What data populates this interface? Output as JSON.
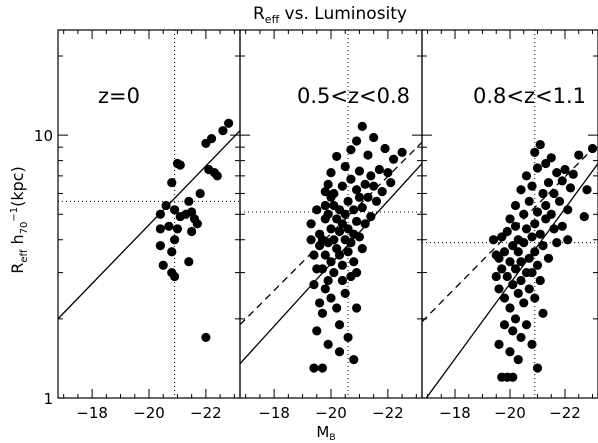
{
  "figure": {
    "title": "R",
    "title_sub": "eff",
    "title_rest": " vs. Luminosity",
    "ylabel_parts": [
      "R",
      "eff",
      " h",
      "70",
      "−1",
      "(kpc)"
    ],
    "xlabel_main": "M",
    "xlabel_sub": "B"
  },
  "chart_data": [
    {
      "type": "scatter",
      "panel_label": "z=0",
      "xlim": [
        -16.8,
        -23.2
      ],
      "ylim_log10": [
        0,
        1.4
      ],
      "x_ticks": [
        -18,
        -20,
        -22
      ],
      "x_tick_labels": [
        "−18",
        "−20",
        "−22"
      ],
      "y_ticks": [
        1,
        10
      ],
      "y_tick_labels": [
        "1",
        "10"
      ],
      "ref_x": -20.9,
      "ref_y": 5.6,
      "lines": [
        {
          "style": "solid",
          "x": [
            -16.8,
            -23.2
          ],
          "y": [
            2.0,
            10.4
          ]
        }
      ],
      "points": [
        [
          -20.4,
          3.8
        ],
        [
          -20.4,
          4.4
        ],
        [
          -20.4,
          5.0
        ],
        [
          -20.5,
          3.2
        ],
        [
          -20.6,
          5.4
        ],
        [
          -20.7,
          4.5
        ],
        [
          -20.8,
          3.0
        ],
        [
          -20.8,
          3.6
        ],
        [
          -20.8,
          6.6
        ],
        [
          -20.9,
          2.9
        ],
        [
          -20.9,
          4.0
        ],
        [
          -20.9,
          5.2
        ],
        [
          -21.0,
          7.8
        ],
        [
          -21.0,
          4.4
        ],
        [
          -21.1,
          4.9
        ],
        [
          -21.1,
          7.7
        ],
        [
          -21.3,
          5.0
        ],
        [
          -21.4,
          5.6
        ],
        [
          -21.4,
          3.3
        ],
        [
          -21.5,
          4.3
        ],
        [
          -21.5,
          5.1
        ],
        [
          -21.6,
          4.8
        ],
        [
          -21.7,
          4.6
        ],
        [
          -21.8,
          6.0
        ],
        [
          -22.0,
          9.3
        ],
        [
          -22.1,
          7.4
        ],
        [
          -22.2,
          9.7
        ],
        [
          -22.3,
          7.2
        ],
        [
          -22.4,
          7.0
        ],
        [
          -22.6,
          10.4
        ],
        [
          -22.8,
          11.1
        ],
        [
          -22.0,
          1.7
        ]
      ]
    },
    {
      "type": "scatter",
      "panel_label": "0.5<z<0.8",
      "xlim": [
        -16.8,
        -23.2
      ],
      "ylim_log10": [
        0,
        1.4
      ],
      "x_ticks": [
        -18,
        -20,
        -22
      ],
      "x_tick_labels": [
        "−18",
        "−20",
        "−22"
      ],
      "y_ticks": [
        1,
        10
      ],
      "ref_x": -20.6,
      "ref_y": 5.1,
      "lines": [
        {
          "style": "dashed",
          "x": [
            -16.8,
            -23.2
          ],
          "y": [
            1.9,
            9.4
          ]
        },
        {
          "style": "solid",
          "x": [
            -16.8,
            -23.2
          ],
          "y": [
            1.35,
            7.8
          ]
        }
      ],
      "points": [
        [
          -19.3,
          4.0
        ],
        [
          -19.3,
          4.6
        ],
        [
          -19.4,
          3.5
        ],
        [
          -19.4,
          2.7
        ],
        [
          -19.4,
          1.3
        ],
        [
          -19.5,
          3.1
        ],
        [
          -19.5,
          5.2
        ],
        [
          -19.6,
          4.2
        ],
        [
          -19.6,
          2.3
        ],
        [
          -19.6,
          3.8
        ],
        [
          -19.7,
          1.3
        ],
        [
          -19.7,
          4.0
        ],
        [
          -19.7,
          3.1
        ],
        [
          -19.7,
          2.1
        ],
        [
          -19.8,
          5.4
        ],
        [
          -19.8,
          4.8
        ],
        [
          -19.8,
          3.5
        ],
        [
          -19.8,
          6.1
        ],
        [
          -19.8,
          2.6
        ],
        [
          -19.9,
          5.0
        ],
        [
          -19.9,
          3.9
        ],
        [
          -19.9,
          2.8
        ],
        [
          -19.9,
          1.6
        ],
        [
          -19.9,
          6.5
        ],
        [
          -20.0,
          4.4
        ],
        [
          -20.0,
          3.3
        ],
        [
          -20.0,
          7.2
        ],
        [
          -20.0,
          5.8
        ],
        [
          -20.0,
          2.4
        ],
        [
          -20.1,
          4.0
        ],
        [
          -20.1,
          3.0
        ],
        [
          -20.1,
          5.4
        ],
        [
          -20.1,
          6.0
        ],
        [
          -20.2,
          4.8
        ],
        [
          -20.2,
          3.7
        ],
        [
          -20.2,
          2.2
        ],
        [
          -20.2,
          8.3
        ],
        [
          -20.3,
          4.3
        ],
        [
          -20.3,
          5.2
        ],
        [
          -20.3,
          3.5
        ],
        [
          -20.3,
          1.9
        ],
        [
          -20.4,
          6.4
        ],
        [
          -20.4,
          4.6
        ],
        [
          -20.4,
          2.8
        ],
        [
          -20.4,
          3.2
        ],
        [
          -20.5,
          5.0
        ],
        [
          -20.5,
          4.0
        ],
        [
          -20.5,
          7.6
        ],
        [
          -20.5,
          2.5
        ],
        [
          -20.6,
          3.6
        ],
        [
          -20.6,
          5.6
        ],
        [
          -20.6,
          4.4
        ],
        [
          -20.6,
          1.7
        ],
        [
          -20.7,
          6.8
        ],
        [
          -20.7,
          3.9
        ],
        [
          -20.7,
          2.9
        ],
        [
          -20.7,
          8.8
        ],
        [
          -20.8,
          5.2
        ],
        [
          -20.8,
          4.2
        ],
        [
          -20.8,
          1.4
        ],
        [
          -20.8,
          3.3
        ],
        [
          -20.9,
          6.2
        ],
        [
          -20.9,
          4.7
        ],
        [
          -20.9,
          3.0
        ],
        [
          -20.9,
          9.5
        ],
        [
          -21.0,
          5.8
        ],
        [
          -21.0,
          4.1
        ],
        [
          -21.0,
          7.3
        ],
        [
          -21.1,
          10.8
        ],
        [
          -21.1,
          5.3
        ],
        [
          -21.1,
          3.7
        ],
        [
          -21.2,
          6.5
        ],
        [
          -21.2,
          4.6
        ],
        [
          -21.3,
          8.4
        ],
        [
          -21.3,
          5.8
        ],
        [
          -21.4,
          7.0
        ],
        [
          -21.4,
          4.9
        ],
        [
          -21.5,
          9.8
        ],
        [
          -21.5,
          6.4
        ],
        [
          -21.6,
          5.6
        ],
        [
          -21.7,
          7.4
        ],
        [
          -21.8,
          6.1
        ],
        [
          -21.9,
          8.9
        ],
        [
          -22.0,
          7.2
        ],
        [
          -22.1,
          6.6
        ],
        [
          -22.2,
          8.1
        ],
        [
          -22.5,
          8.6
        ],
        [
          -20.3,
          1.5
        ],
        [
          -19.5,
          1.8
        ],
        [
          -20.9,
          2.2
        ]
      ]
    },
    {
      "type": "scatter",
      "panel_label": "0.8<z<1.1",
      "xlim": [
        -16.8,
        -23.2
      ],
      "ylim_log10": [
        0,
        1.4
      ],
      "x_ticks": [
        -18,
        -20,
        -22
      ],
      "x_tick_labels": [
        "−18",
        "−20",
        "−22"
      ],
      "y_ticks": [
        1,
        10
      ],
      "ref_x": -20.9,
      "ref_y": 3.9,
      "lines": [
        {
          "style": "dashed",
          "x": [
            -16.8,
            -23.2
          ],
          "y": [
            1.95,
            9.3
          ]
        },
        {
          "style": "solid",
          "x": [
            -16.8,
            -23.2
          ],
          "y": [
            0.95,
            7.8
          ]
        }
      ],
      "points": [
        [
          -19.4,
          4.0
        ],
        [
          -19.5,
          2.9
        ],
        [
          -19.5,
          3.5
        ],
        [
          -19.6,
          1.6
        ],
        [
          -19.6,
          2.6
        ],
        [
          -19.7,
          1.2
        ],
        [
          -19.7,
          3.1
        ],
        [
          -19.7,
          4.1
        ],
        [
          -19.8,
          2.4
        ],
        [
          -19.8,
          1.9
        ],
        [
          -19.8,
          3.6
        ],
        [
          -19.9,
          1.2
        ],
        [
          -19.9,
          2.9
        ],
        [
          -19.9,
          4.3
        ],
        [
          -20.0,
          2.2
        ],
        [
          -20.0,
          3.3
        ],
        [
          -20.0,
          1.5
        ],
        [
          -20.0,
          4.8
        ],
        [
          -20.1,
          2.7
        ],
        [
          -20.1,
          3.8
        ],
        [
          -20.1,
          1.8
        ],
        [
          -20.2,
          2.0
        ],
        [
          -20.2,
          3.1
        ],
        [
          -20.2,
          4.5
        ],
        [
          -20.2,
          5.4
        ],
        [
          -20.3,
          2.5
        ],
        [
          -20.3,
          3.6
        ],
        [
          -20.3,
          1.4
        ],
        [
          -20.3,
          4.0
        ],
        [
          -20.4,
          2.8
        ],
        [
          -20.4,
          3.3
        ],
        [
          -20.4,
          6.2
        ],
        [
          -20.4,
          1.7
        ],
        [
          -20.5,
          3.9
        ],
        [
          -20.5,
          2.3
        ],
        [
          -20.5,
          5.0
        ],
        [
          -20.6,
          3.0
        ],
        [
          -20.6,
          1.9
        ],
        [
          -20.6,
          4.4
        ],
        [
          -20.6,
          7.0
        ],
        [
          -20.7,
          3.4
        ],
        [
          -20.7,
          2.6
        ],
        [
          -20.7,
          5.6
        ],
        [
          -20.8,
          4.1
        ],
        [
          -20.8,
          1.6
        ],
        [
          -20.8,
          3.0
        ],
        [
          -20.8,
          6.4
        ],
        [
          -20.9,
          2.4
        ],
        [
          -20.9,
          4.6
        ],
        [
          -20.9,
          3.6
        ],
        [
          -20.9,
          8.6
        ],
        [
          -21.0,
          1.3
        ],
        [
          -21.0,
          5.1
        ],
        [
          -21.0,
          3.2
        ],
        [
          -21.0,
          7.5
        ],
        [
          -21.1,
          2.8
        ],
        [
          -21.1,
          4.2
        ],
        [
          -21.1,
          9.2
        ],
        [
          -21.2,
          6.0
        ],
        [
          -21.2,
          3.8
        ],
        [
          -21.2,
          2.1
        ],
        [
          -21.3,
          5.4
        ],
        [
          -21.3,
          4.8
        ],
        [
          -21.3,
          7.8
        ],
        [
          -21.4,
          3.4
        ],
        [
          -21.4,
          6.6
        ],
        [
          -21.5,
          5.0
        ],
        [
          -21.5,
          8.2
        ],
        [
          -21.6,
          4.4
        ],
        [
          -21.6,
          6.0
        ],
        [
          -21.7,
          3.9
        ],
        [
          -21.7,
          7.2
        ],
        [
          -21.8,
          5.6
        ],
        [
          -21.9,
          4.5
        ],
        [
          -21.9,
          6.7
        ],
        [
          -22.0,
          7.4
        ],
        [
          -22.1,
          5.2
        ],
        [
          -22.1,
          4.0
        ],
        [
          -22.2,
          6.3
        ],
        [
          -22.3,
          7.1
        ],
        [
          -22.5,
          8.4
        ],
        [
          -22.7,
          4.9
        ],
        [
          -22.8,
          6.2
        ],
        [
          -23.0,
          8.9
        ],
        [
          -19.6,
          3.4
        ],
        [
          -20.1,
          1.2
        ]
      ]
    }
  ]
}
